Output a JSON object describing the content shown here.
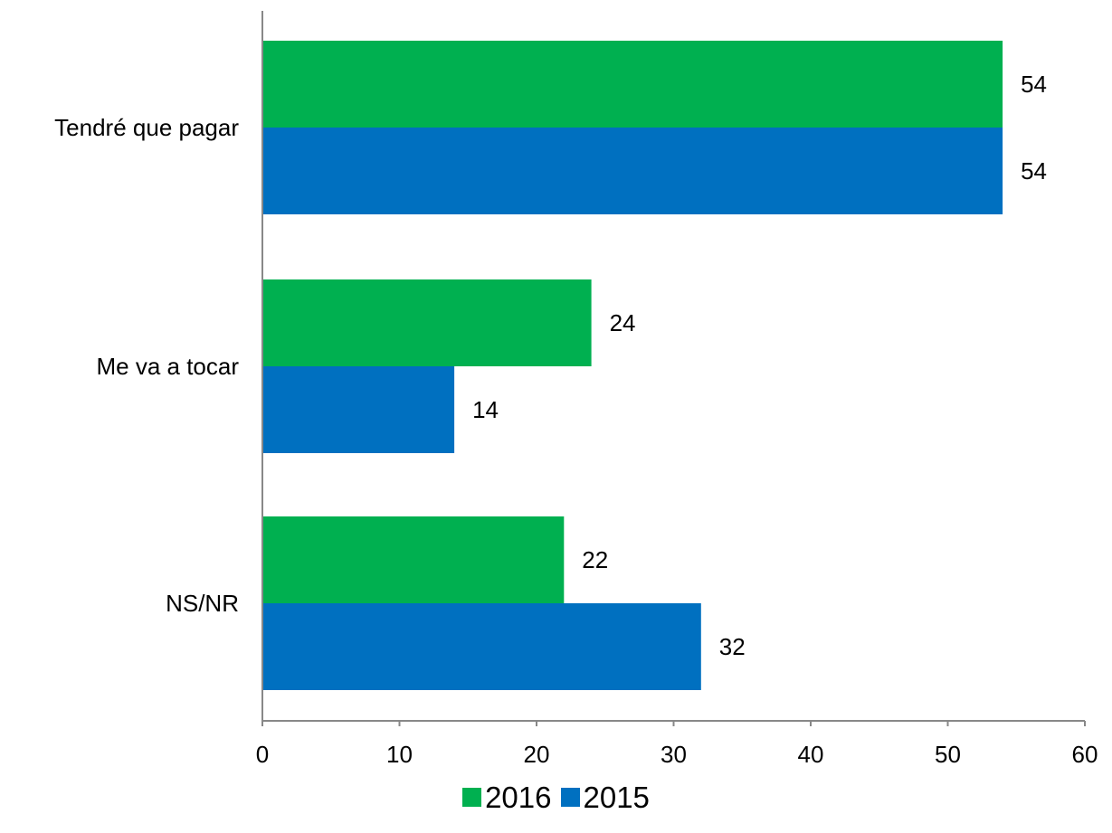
{
  "chart_data": {
    "type": "bar",
    "orientation": "horizontal",
    "categories": [
      "Tendré que pagar",
      "Me va a tocar",
      "NS/NR"
    ],
    "series": [
      {
        "name": "2016",
        "color": "#00b050",
        "values": [
          54,
          24,
          22
        ]
      },
      {
        "name": "2015",
        "color": "#0070c0",
        "values": [
          54,
          14,
          32
        ]
      }
    ],
    "data_labels": [
      [
        "54",
        "24",
        "22"
      ],
      [
        "54",
        "14",
        "32"
      ]
    ],
    "title": "",
    "xlabel": "",
    "ylabel": "",
    "xlim": [
      0,
      60
    ],
    "x_ticks": [
      "0",
      "10",
      "20",
      "30",
      "40",
      "50",
      "60"
    ],
    "grid": false,
    "legend_position": "bottom"
  }
}
